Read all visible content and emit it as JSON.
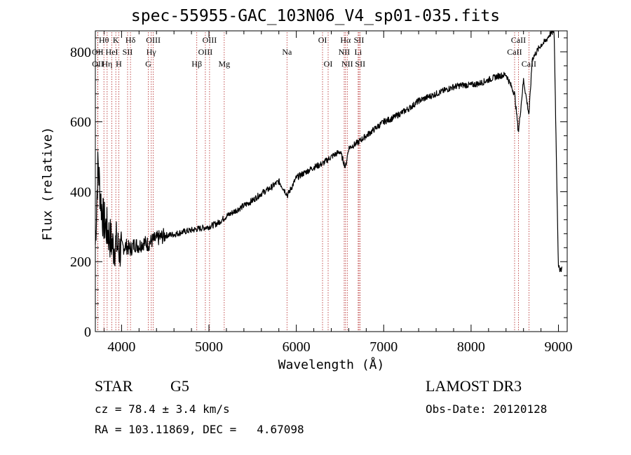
{
  "chart_data": {
    "type": "line",
    "title": "spec-55955-GAC_103N06_V4_sp01-035.fits",
    "xlabel": "Wavelength (Å)",
    "ylabel": "Flux (relative)",
    "xlim": [
      3700,
      9100
    ],
    "ylim": [
      0,
      860
    ],
    "xticks": [
      4000,
      5000,
      6000,
      7000,
      8000,
      9000
    ],
    "yticks": [
      0,
      200,
      400,
      600,
      800
    ],
    "series": [
      {
        "name": "spectrum",
        "x": [
          3700,
          3730,
          3760,
          3790,
          3820,
          3850,
          3880,
          3910,
          3940,
          3970,
          4000,
          4050,
          4100,
          4150,
          4200,
          4250,
          4300,
          4350,
          4400,
          4500,
          4600,
          4700,
          4800,
          4900,
          5000,
          5100,
          5200,
          5300,
          5400,
          5500,
          5600,
          5700,
          5800,
          5900,
          6000,
          6100,
          6200,
          6300,
          6400,
          6500,
          6563,
          6600,
          6700,
          6800,
          6900,
          7000,
          7100,
          7200,
          7300,
          7400,
          7500,
          7600,
          7700,
          7800,
          7900,
          8000,
          8100,
          8200,
          8300,
          8400,
          8498,
          8542,
          8600,
          8662,
          8700,
          8750,
          8800,
          8850,
          8900,
          8950,
          9000
        ],
        "values": [
          250,
          480,
          380,
          320,
          300,
          280,
          260,
          240,
          255,
          230,
          240,
          245,
          235,
          250,
          245,
          255,
          250,
          260,
          265,
          275,
          278,
          285,
          290,
          295,
          300,
          310,
          330,
          345,
          360,
          375,
          395,
          410,
          430,
          390,
          440,
          455,
          470,
          480,
          500,
          515,
          470,
          525,
          540,
          560,
          580,
          600,
          610,
          625,
          640,
          660,
          670,
          680,
          690,
          700,
          705,
          705,
          710,
          720,
          730,
          735,
          680,
          570,
          720,
          620,
          780,
          800,
          820,
          830,
          850,
          860,
          180
        ]
      }
    ],
    "lines": [
      {
        "label": "Hθ",
        "x": 3798,
        "row": 1
      },
      {
        "label": "OII",
        "x": 3727,
        "row": 2
      },
      {
        "label": "OII",
        "x": 3729,
        "row": 3
      },
      {
        "label": "Hη",
        "x": 3835,
        "row": 3
      },
      {
        "label": "K",
        "x": 3934,
        "row": 1
      },
      {
        "label": "HeI",
        "x": 3889,
        "row": 2
      },
      {
        "label": "H",
        "x": 3968,
        "row": 3
      },
      {
        "label": "Hδ",
        "x": 4102,
        "row": 1
      },
      {
        "label": "SII",
        "x": 4069,
        "row": 2
      },
      {
        "label": "OIII",
        "x": 4363,
        "row": 1
      },
      {
        "label": "Hγ",
        "x": 4340,
        "row": 2
      },
      {
        "label": "G",
        "x": 4305,
        "row": 3
      },
      {
        "label": "OIII",
        "x": 5007,
        "row": 1
      },
      {
        "label": "OIII",
        "x": 4959,
        "row": 2
      },
      {
        "label": "Hβ",
        "x": 4861,
        "row": 3
      },
      {
        "label": "Mg",
        "x": 5175,
        "row": 3
      },
      {
        "label": "Na",
        "x": 5893,
        "row": 2
      },
      {
        "label": "OI",
        "x": 6300,
        "row": 1
      },
      {
        "label": "OI",
        "x": 6364,
        "row": 3
      },
      {
        "label": "Hα",
        "x": 6563,
        "row": 1
      },
      {
        "label": "SII",
        "x": 6717,
        "row": 1
      },
      {
        "label": "NII",
        "x": 6548,
        "row": 2
      },
      {
        "label": "Li",
        "x": 6708,
        "row": 2
      },
      {
        "label": "NII",
        "x": 6583,
        "row": 3
      },
      {
        "label": "SII",
        "x": 6731,
        "row": 3
      },
      {
        "label": "CaII",
        "x": 8542,
        "row": 1
      },
      {
        "label": "CaII",
        "x": 8498,
        "row": 2
      },
      {
        "label": "CaII",
        "x": 8662,
        "row": 3
      }
    ]
  },
  "info": {
    "object_class": "STAR",
    "subclass": "G5",
    "survey": "LAMOST DR3",
    "redshift": "cz = 78.4 ± 3.4 km/s",
    "obs_date": "Obs-Date: 20120128",
    "coords": "RA = 103.11869, DEC =   4.67098"
  }
}
